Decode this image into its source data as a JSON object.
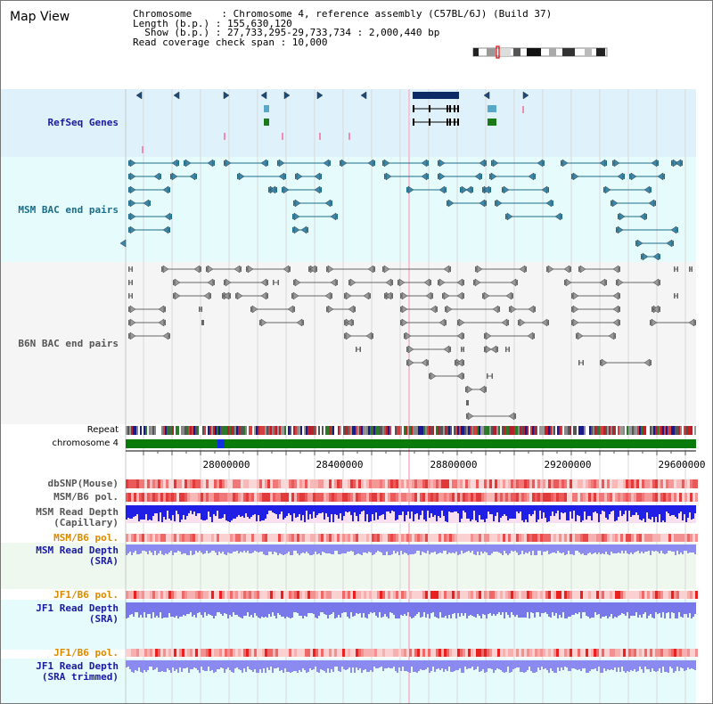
{
  "title": "Map View",
  "info": {
    "line1": "Chromosome     : Chromosome 4, reference assembly (C57BL/6J) (Build 37)",
    "line2": "Length (b.p.) : 155,630,120",
    "line3": "  Show (b.p.) : 27,733,295-29,733,734 : 2,000,440 bp",
    "line4": "Read coverage check span : 10,000"
  },
  "tracks": {
    "refseq": "RefSeq Genes",
    "msm_bac": "MSM BAC end pairs",
    "b6n_bac": "B6N BAC end pairs",
    "repeat": "Repeat",
    "chromosome": "chromosome 4",
    "dbsnp": "dbSNP(Mouse)",
    "msm_b6_pol": "MSM/B6 pol.",
    "msm_depth_cap": "MSM Read Depth\n(Capillary)",
    "msm_b6_pol2": "MSM/B6 pol.",
    "msm_depth_sra": "MSM Read Depth\n(SRA)",
    "jf1_b6_pol": "JF1/B6 pol.",
    "jf1_depth_sra": "JF1 Read Depth\n(SRA)",
    "jf1_b6_pol2": "JF1/B6 pol.",
    "jf1_depth_trim": "JF1 Read Depth\n(SRA trimmed)"
  },
  "axis": {
    "ticks": [
      "28000000",
      "28400000",
      "28800000",
      "29200000",
      "29600000"
    ]
  },
  "colors": {
    "refseq_label": "#1a1aa0",
    "msm_label": "#1a6e8a",
    "b6n_label": "#555555",
    "orange_label": "#d98a00",
    "blue_label": "#1a1aa0",
    "refseq_bg": "#dff2fb",
    "msm_bg": "#e6fbfb",
    "b6n_bg": "#f4f4f4",
    "chrom_green": "#0a7a0a"
  }
}
